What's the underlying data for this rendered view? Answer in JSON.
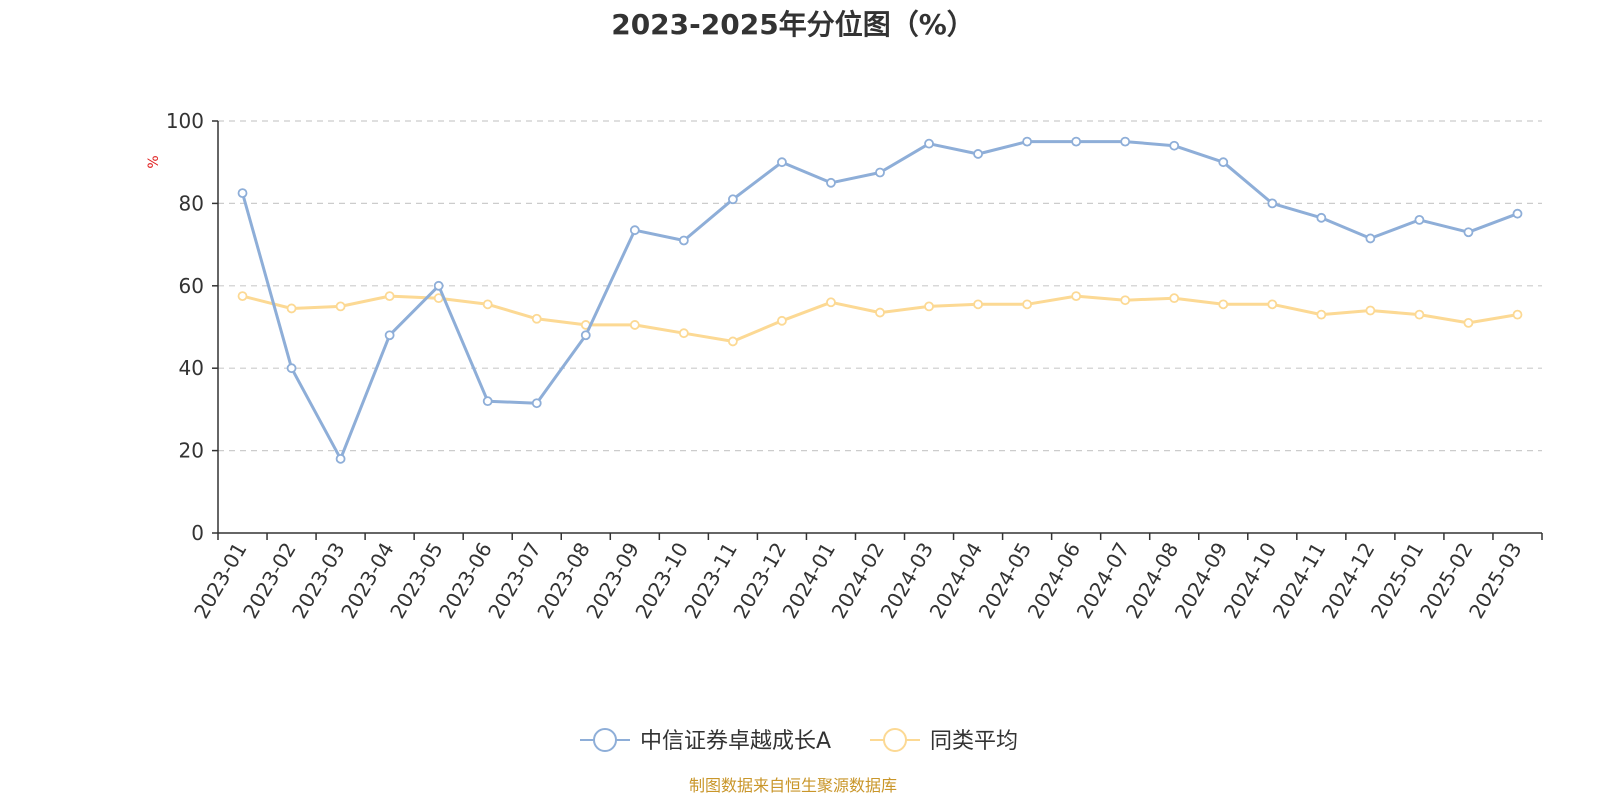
{
  "chart_data": {
    "type": "line",
    "title": "2023-2025年分位图（%）",
    "ylabel": "%",
    "ylim": [
      0,
      100
    ],
    "yticks": [
      0,
      20,
      40,
      60,
      80,
      100
    ],
    "grid": true,
    "legend_position": "bottom",
    "categories": [
      "2023-01",
      "2023-02",
      "2023-03",
      "2023-04",
      "2023-05",
      "2023-06",
      "2023-07",
      "2023-08",
      "2023-09",
      "2023-10",
      "2023-11",
      "2023-12",
      "2024-01",
      "2024-02",
      "2024-03",
      "2024-04",
      "2024-05",
      "2024-06",
      "2024-07",
      "2024-08",
      "2024-09",
      "2024-10",
      "2024-11",
      "2024-12",
      "2025-01",
      "2025-02",
      "2025-03"
    ],
    "series": [
      {
        "name": "中信证券卓越成长A",
        "color": "#8eaed8",
        "values": [
          82.5,
          40,
          18,
          48,
          60,
          32,
          31.5,
          48,
          73.5,
          71,
          81,
          90,
          85,
          87.5,
          94.5,
          92,
          95,
          95,
          95,
          94,
          90,
          80,
          76.5,
          71.5,
          76,
          73,
          77.5
        ]
      },
      {
        "name": "同类平均",
        "color": "#fcd994",
        "values": [
          57.5,
          54.5,
          55,
          57.5,
          57,
          55.5,
          52,
          50.5,
          50.5,
          48.5,
          46.5,
          51.5,
          56,
          53.5,
          55,
          55.5,
          55.5,
          57.5,
          56.5,
          57,
          55.5,
          55.5,
          53,
          54,
          53,
          51,
          53
        ]
      }
    ]
  },
  "source_text": "制图数据来自恒生聚源数据库",
  "colors": {
    "unit": "#e02020",
    "source": "#c9962a",
    "axis": "#333333",
    "grid": "#cccccc"
  }
}
